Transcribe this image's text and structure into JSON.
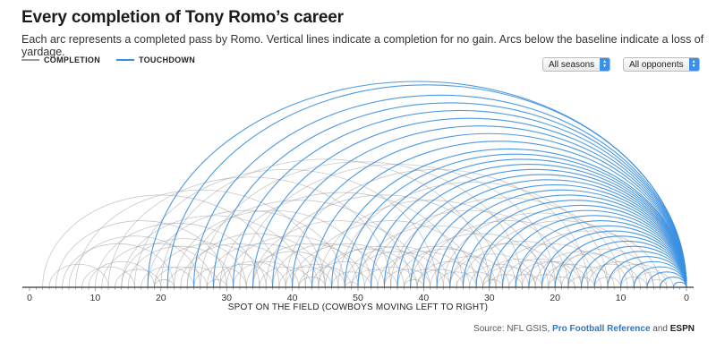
{
  "header": {
    "title": "Every completion of Tony Romo’s career",
    "subtitle": "Each arc represents a completed pass by Romo. Vertical lines indicate a completion for no gain. Arcs below the baseline indicate a loss of yardage."
  },
  "legend": {
    "completion_label": "COMPLETION",
    "touchdown_label": "TOUCHDOWN"
  },
  "filters": {
    "seasons_value": "All seasons",
    "opponents_value": "All opponents"
  },
  "source": {
    "prefix": "Source: NFL GSIS, ",
    "pfr": "Pro Football Reference",
    "and": " and ",
    "espn": "ESPN"
  },
  "colors": {
    "completion": "#9a9a9a",
    "touchdown": "#3a8fe0",
    "axis": "#333333"
  },
  "chart_data": {
    "type": "arc",
    "xlabel": "SPOT ON THE FIELD (COWBOYS MOVING LEFT TO RIGHT)",
    "x_ticks": [
      "0",
      "10",
      "20",
      "30",
      "40",
      "50",
      "40",
      "30",
      "20",
      "10",
      "0"
    ],
    "x_domain": [
      0,
      100
    ],
    "series": [
      {
        "name": "TOUCHDOWN",
        "arcs": [
          {
            "start": 18,
            "end": 100
          },
          {
            "start": 21,
            "end": 100
          },
          {
            "start": 25,
            "end": 100
          },
          {
            "start": 28,
            "end": 100
          },
          {
            "start": 31,
            "end": 100
          },
          {
            "start": 34,
            "end": 100
          },
          {
            "start": 37,
            "end": 100
          },
          {
            "start": 40,
            "end": 100
          },
          {
            "start": 43,
            "end": 100
          },
          {
            "start": 46,
            "end": 100
          },
          {
            "start": 48,
            "end": 100
          },
          {
            "start": 50,
            "end": 100
          },
          {
            "start": 52,
            "end": 100
          },
          {
            "start": 54,
            "end": 100
          },
          {
            "start": 56,
            "end": 100
          },
          {
            "start": 58,
            "end": 100
          },
          {
            "start": 60,
            "end": 100
          },
          {
            "start": 62,
            "end": 100
          },
          {
            "start": 64,
            "end": 100
          },
          {
            "start": 66,
            "end": 100
          },
          {
            "start": 68,
            "end": 100
          },
          {
            "start": 70,
            "end": 100
          },
          {
            "start": 72,
            "end": 100
          },
          {
            "start": 74,
            "end": 100
          },
          {
            "start": 76,
            "end": 100
          },
          {
            "start": 78,
            "end": 100
          },
          {
            "start": 80,
            "end": 100
          },
          {
            "start": 82,
            "end": 100
          },
          {
            "start": 84,
            "end": 100
          },
          {
            "start": 86,
            "end": 100
          },
          {
            "start": 88,
            "end": 100
          },
          {
            "start": 90,
            "end": 100
          },
          {
            "start": 92,
            "end": 100
          },
          {
            "start": 94,
            "end": 100
          },
          {
            "start": 96,
            "end": 100
          },
          {
            "start": 98,
            "end": 100
          }
        ]
      },
      {
        "name": "COMPLETION",
        "arcs": [
          {
            "start": 2,
            "end": 38
          },
          {
            "start": 4,
            "end": 30
          },
          {
            "start": 5,
            "end": 22
          },
          {
            "start": 7,
            "end": 45
          },
          {
            "start": 8,
            "end": 16
          },
          {
            "start": 10,
            "end": 35
          },
          {
            "start": 11,
            "end": 28
          },
          {
            "start": 12,
            "end": 55
          },
          {
            "start": 13,
            "end": 20
          },
          {
            "start": 14,
            "end": 42
          },
          {
            "start": 15,
            "end": 31
          },
          {
            "start": 16,
            "end": 62
          },
          {
            "start": 17,
            "end": 25
          },
          {
            "start": 18,
            "end": 48
          },
          {
            "start": 19,
            "end": 36
          },
          {
            "start": 20,
            "end": 70
          },
          {
            "start": 21,
            "end": 29
          },
          {
            "start": 22,
            "end": 52
          },
          {
            "start": 23,
            "end": 40
          },
          {
            "start": 24,
            "end": 58
          },
          {
            "start": 25,
            "end": 33
          },
          {
            "start": 26,
            "end": 75
          },
          {
            "start": 27,
            "end": 44
          },
          {
            "start": 28,
            "end": 37
          },
          {
            "start": 29,
            "end": 66
          },
          {
            "start": 30,
            "end": 50
          },
          {
            "start": 31,
            "end": 41
          },
          {
            "start": 32,
            "end": 80
          },
          {
            "start": 33,
            "end": 47
          },
          {
            "start": 34,
            "end": 60
          },
          {
            "start": 35,
            "end": 43
          },
          {
            "start": 36,
            "end": 72
          },
          {
            "start": 37,
            "end": 54
          },
          {
            "start": 38,
            "end": 46
          },
          {
            "start": 39,
            "end": 85
          },
          {
            "start": 40,
            "end": 57
          },
          {
            "start": 41,
            "end": 49
          },
          {
            "start": 42,
            "end": 68
          },
          {
            "start": 43,
            "end": 53
          },
          {
            "start": 44,
            "end": 78
          },
          {
            "start": 45,
            "end": 61
          },
          {
            "start": 46,
            "end": 52
          },
          {
            "start": 47,
            "end": 88
          },
          {
            "start": 48,
            "end": 64
          },
          {
            "start": 49,
            "end": 56
          },
          {
            "start": 50,
            "end": 74
          },
          {
            "start": 51,
            "end": 59
          },
          {
            "start": 52,
            "end": 82
          },
          {
            "start": 53,
            "end": 67
          },
          {
            "start": 54,
            "end": 61
          },
          {
            "start": 55,
            "end": 90
          },
          {
            "start": 56,
            "end": 71
          },
          {
            "start": 57,
            "end": 64
          },
          {
            "start": 58,
            "end": 79
          },
          {
            "start": 59,
            "end": 69
          },
          {
            "start": 60,
            "end": 86
          },
          {
            "start": 61,
            "end": 73
          },
          {
            "start": 62,
            "end": 68
          },
          {
            "start": 63,
            "end": 92
          },
          {
            "start": 64,
            "end": 77
          },
          {
            "start": 65,
            "end": 71
          },
          {
            "start": 66,
            "end": 84
          },
          {
            "start": 67,
            "end": 76
          },
          {
            "start": 68,
            "end": 94
          },
          {
            "start": 69,
            "end": 80
          },
          {
            "start": 70,
            "end": 75
          },
          {
            "start": 71,
            "end": 88
          },
          {
            "start": 72,
            "end": 83
          },
          {
            "start": 73,
            "end": 78
          },
          {
            "start": 74,
            "end": 96
          },
          {
            "start": 75,
            "end": 85
          },
          {
            "start": 76,
            "end": 81
          },
          {
            "start": 77,
            "end": 91
          },
          {
            "start": 78,
            "end": 87
          },
          {
            "start": 79,
            "end": 83
          },
          {
            "start": 80,
            "end": 95
          },
          {
            "start": 81,
            "end": 89
          },
          {
            "start": 82,
            "end": 86
          },
          {
            "start": 84,
            "end": 93
          },
          {
            "start": 86,
            "end": 90
          },
          {
            "start": 88,
            "end": 97
          },
          {
            "start": 90,
            "end": 94
          },
          {
            "start": 92,
            "end": 98
          },
          {
            "start": 94,
            "end": 97
          },
          {
            "start": 3,
            "end": 12
          },
          {
            "start": 6,
            "end": 26
          },
          {
            "start": 9,
            "end": 19
          },
          {
            "start": 14,
            "end": 33
          },
          {
            "start": 19,
            "end": 27
          },
          {
            "start": 24,
            "end": 45
          },
          {
            "start": 29,
            "end": 39
          },
          {
            "start": 34,
            "end": 51
          },
          {
            "start": 39,
            "end": 48
          },
          {
            "start": 44,
            "end": 59
          },
          {
            "start": 49,
            "end": 63
          },
          {
            "start": 54,
            "end": 70
          },
          {
            "start": 59,
            "end": 66
          },
          {
            "start": 64,
            "end": 81
          },
          {
            "start": 69,
            "end": 77
          },
          {
            "start": 74,
            "end": 84
          },
          {
            "start": 79,
            "end": 92
          },
          {
            "start": 85,
            "end": 95
          },
          {
            "start": 30,
            "end": 27
          },
          {
            "start": 45,
            "end": 41
          },
          {
            "start": 60,
            "end": 57
          },
          {
            "start": 22,
            "end": 19
          },
          {
            "start": 72,
            "end": 69
          },
          {
            "start": 50,
            "end": 48
          },
          {
            "start": 35,
            "end": 35
          },
          {
            "start": 55,
            "end": 55
          },
          {
            "start": 40,
            "end": 40
          },
          {
            "start": 65,
            "end": 65
          },
          {
            "start": 28,
            "end": 28
          }
        ]
      }
    ]
  }
}
